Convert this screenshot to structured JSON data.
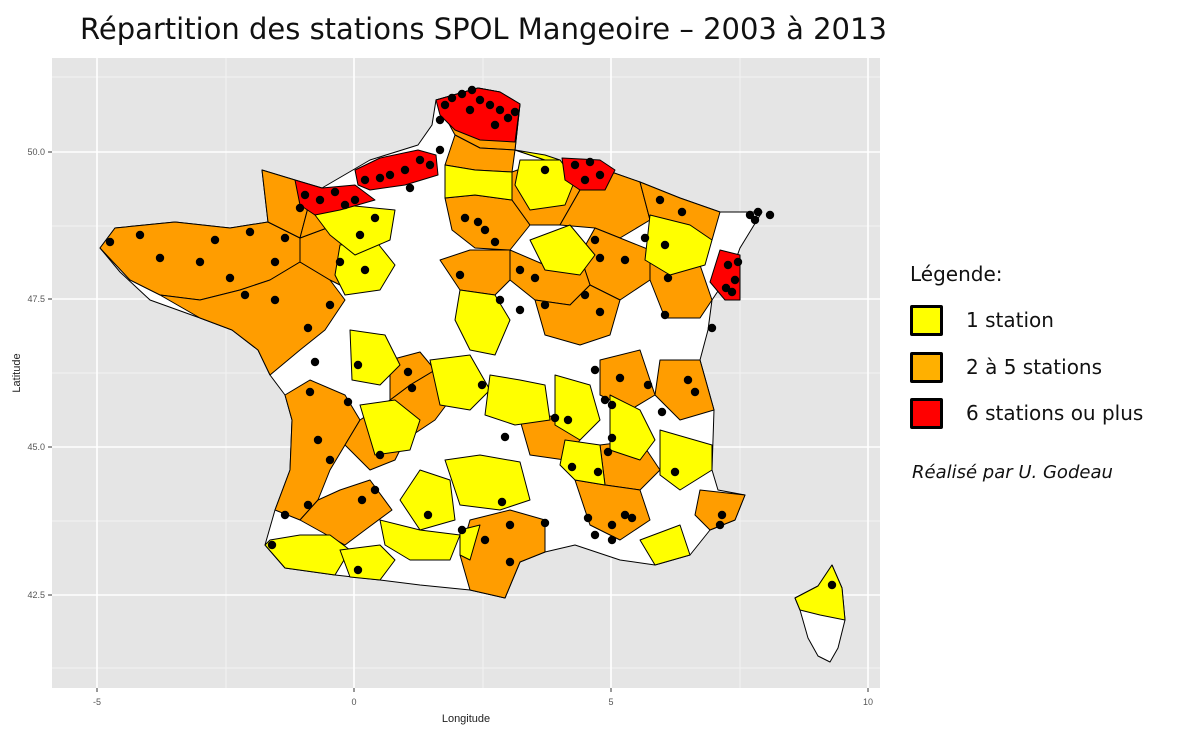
{
  "title": "Répartition des stations SPOL Mangeoire – 2003 à 2013",
  "axes": {
    "xlabel": "Longitude",
    "ylabel": "Latitude",
    "xticks": [
      "-5",
      "0",
      "5",
      "10"
    ],
    "yticks": [
      "50.0",
      "47.5",
      "45.0",
      "42.5"
    ]
  },
  "legend": {
    "title": "Légende:",
    "items": [
      {
        "label": "1 station",
        "color": "#ffff00"
      },
      {
        "label": "2 à 5 stations",
        "color": "#ffb000"
      },
      {
        "label": "6 stations ou plus",
        "color": "#ff0000"
      }
    ]
  },
  "credit": "Réalisé par U. Godeau",
  "colors": {
    "panel": "#e5e5e5",
    "grid": "#ffffff",
    "white_region": "#ffffff",
    "yellow_region": "#ffff00",
    "orange_region": "#ff9d00",
    "red_region": "#ff0000",
    "station_dot": "#000000"
  }
}
